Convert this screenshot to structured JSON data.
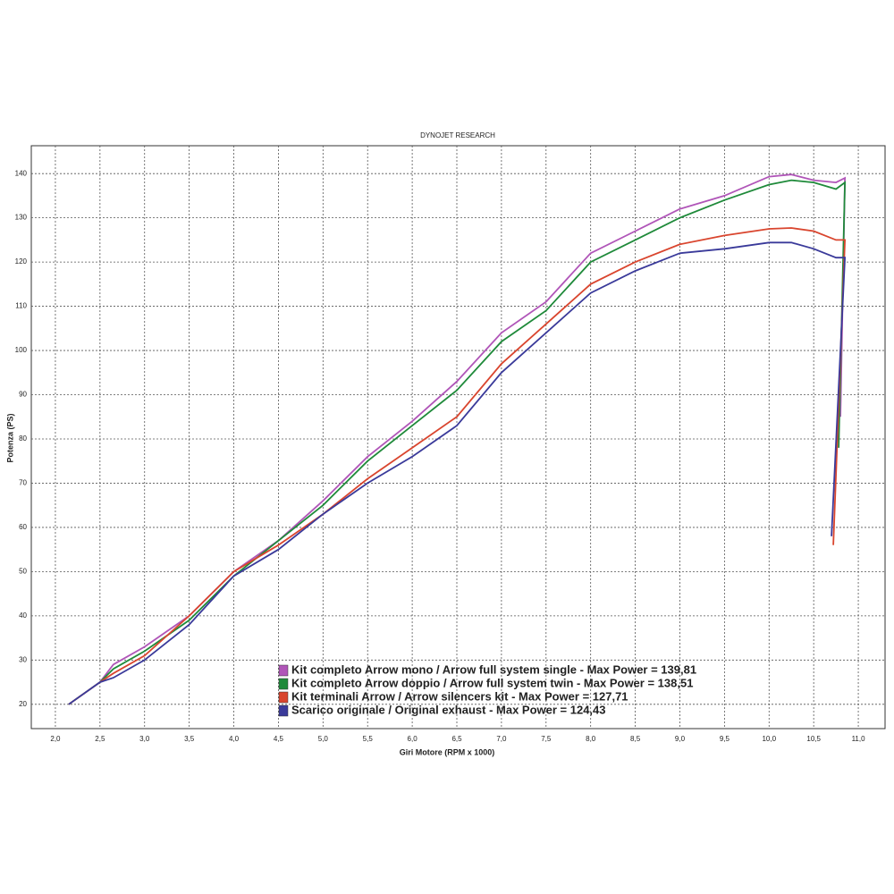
{
  "chart_data": {
    "type": "line",
    "title": "DYNOJET RESEARCH",
    "x_label": "Giri Motore (RPM x 1000)",
    "y_label": "Potenza (PS)",
    "xlim": [
      1.73,
      11.3
    ],
    "ylim": [
      14.5,
      146.3
    ],
    "xticks": [
      {
        "value": 2.0,
        "label": "2,0"
      },
      {
        "value": 2.5,
        "label": "2,5"
      },
      {
        "value": 3.0,
        "label": "3,0"
      },
      {
        "value": 3.5,
        "label": "3,5"
      },
      {
        "value": 4.0,
        "label": "4,0"
      },
      {
        "value": 4.5,
        "label": "4,5"
      },
      {
        "value": 5.0,
        "label": "5,0"
      },
      {
        "value": 5.5,
        "label": "5,5"
      },
      {
        "value": 6.0,
        "label": "6,0"
      },
      {
        "value": 6.5,
        "label": "6,5"
      },
      {
        "value": 7.0,
        "label": "7,0"
      },
      {
        "value": 7.5,
        "label": "7,5"
      },
      {
        "value": 8.0,
        "label": "8,0"
      },
      {
        "value": 8.5,
        "label": "8,5"
      },
      {
        "value": 9.0,
        "label": "9,0"
      },
      {
        "value": 9.5,
        "label": "9,5"
      },
      {
        "value": 10.0,
        "label": "10,0"
      },
      {
        "value": 10.5,
        "label": "10,5"
      },
      {
        "value": 11.0,
        "label": "11,0"
      }
    ],
    "yticks": [
      20,
      30,
      40,
      50,
      60,
      70,
      80,
      90,
      100,
      110,
      120,
      130,
      140
    ],
    "grid": true,
    "series": [
      {
        "name": "Kit completo Arrow mono / Arrow full system single - Max Power = 139,81",
        "color": "#b055b8",
        "x": [
          2.15,
          2.5,
          2.65,
          3.0,
          3.5,
          4.0,
          4.5,
          5.0,
          5.5,
          6.0,
          6.5,
          7.0,
          7.5,
          8.0,
          8.5,
          9.0,
          9.5,
          10.0,
          10.25,
          10.5,
          10.75,
          10.85,
          10.8
        ],
        "values": [
          20,
          25,
          29,
          33,
          40,
          50,
          57,
          66,
          76,
          84,
          93,
          104,
          111,
          122,
          127,
          132,
          135,
          139.3,
          139.8,
          138.5,
          138,
          139,
          85
        ]
      },
      {
        "name": "Kit completo Arrow doppio / Arrow full system twin - Max Power = 138,51",
        "color": "#1f8a3a",
        "x": [
          2.15,
          2.5,
          2.65,
          3.0,
          3.5,
          4.0,
          4.5,
          5.0,
          5.5,
          6.0,
          6.5,
          7.0,
          7.5,
          8.0,
          8.5,
          9.0,
          9.5,
          10.0,
          10.25,
          10.5,
          10.75,
          10.85,
          10.78
        ],
        "values": [
          20,
          25,
          28,
          32,
          39,
          49,
          57,
          65,
          75,
          83,
          91,
          102,
          109,
          120,
          125,
          130,
          134,
          137.5,
          138.5,
          138,
          136.5,
          138,
          78
        ]
      },
      {
        "name": "Kit terminali Arrow / Arrow silencers kit - Max Power = 127,71",
        "color": "#d9452e",
        "x": [
          2.15,
          2.5,
          2.65,
          3.0,
          3.5,
          4.0,
          4.5,
          5.0,
          5.5,
          6.0,
          6.5,
          7.0,
          7.5,
          8.0,
          8.5,
          9.0,
          9.5,
          10.0,
          10.25,
          10.5,
          10.75,
          10.85,
          10.72
        ],
        "values": [
          20,
          25,
          27,
          31,
          40,
          50,
          56,
          63,
          71,
          78,
          85,
          97,
          106,
          115,
          120,
          124,
          126,
          127.5,
          127.7,
          127,
          125,
          125,
          56
        ]
      },
      {
        "name": "Scarico originale / Original exhaust - Max Power = 124,43",
        "color": "#3a3a9a",
        "x": [
          2.15,
          2.5,
          2.65,
          3.0,
          3.5,
          4.0,
          4.5,
          5.0,
          5.5,
          6.0,
          6.5,
          7.0,
          7.5,
          8.0,
          8.5,
          9.0,
          9.5,
          10.0,
          10.25,
          10.5,
          10.75,
          10.85,
          10.7
        ],
        "values": [
          20,
          25,
          26,
          30,
          38,
          49,
          55,
          63,
          70,
          76,
          83,
          95,
          104,
          113,
          118,
          122,
          123,
          124.4,
          124.4,
          123,
          121,
          121,
          58
        ]
      }
    ]
  }
}
